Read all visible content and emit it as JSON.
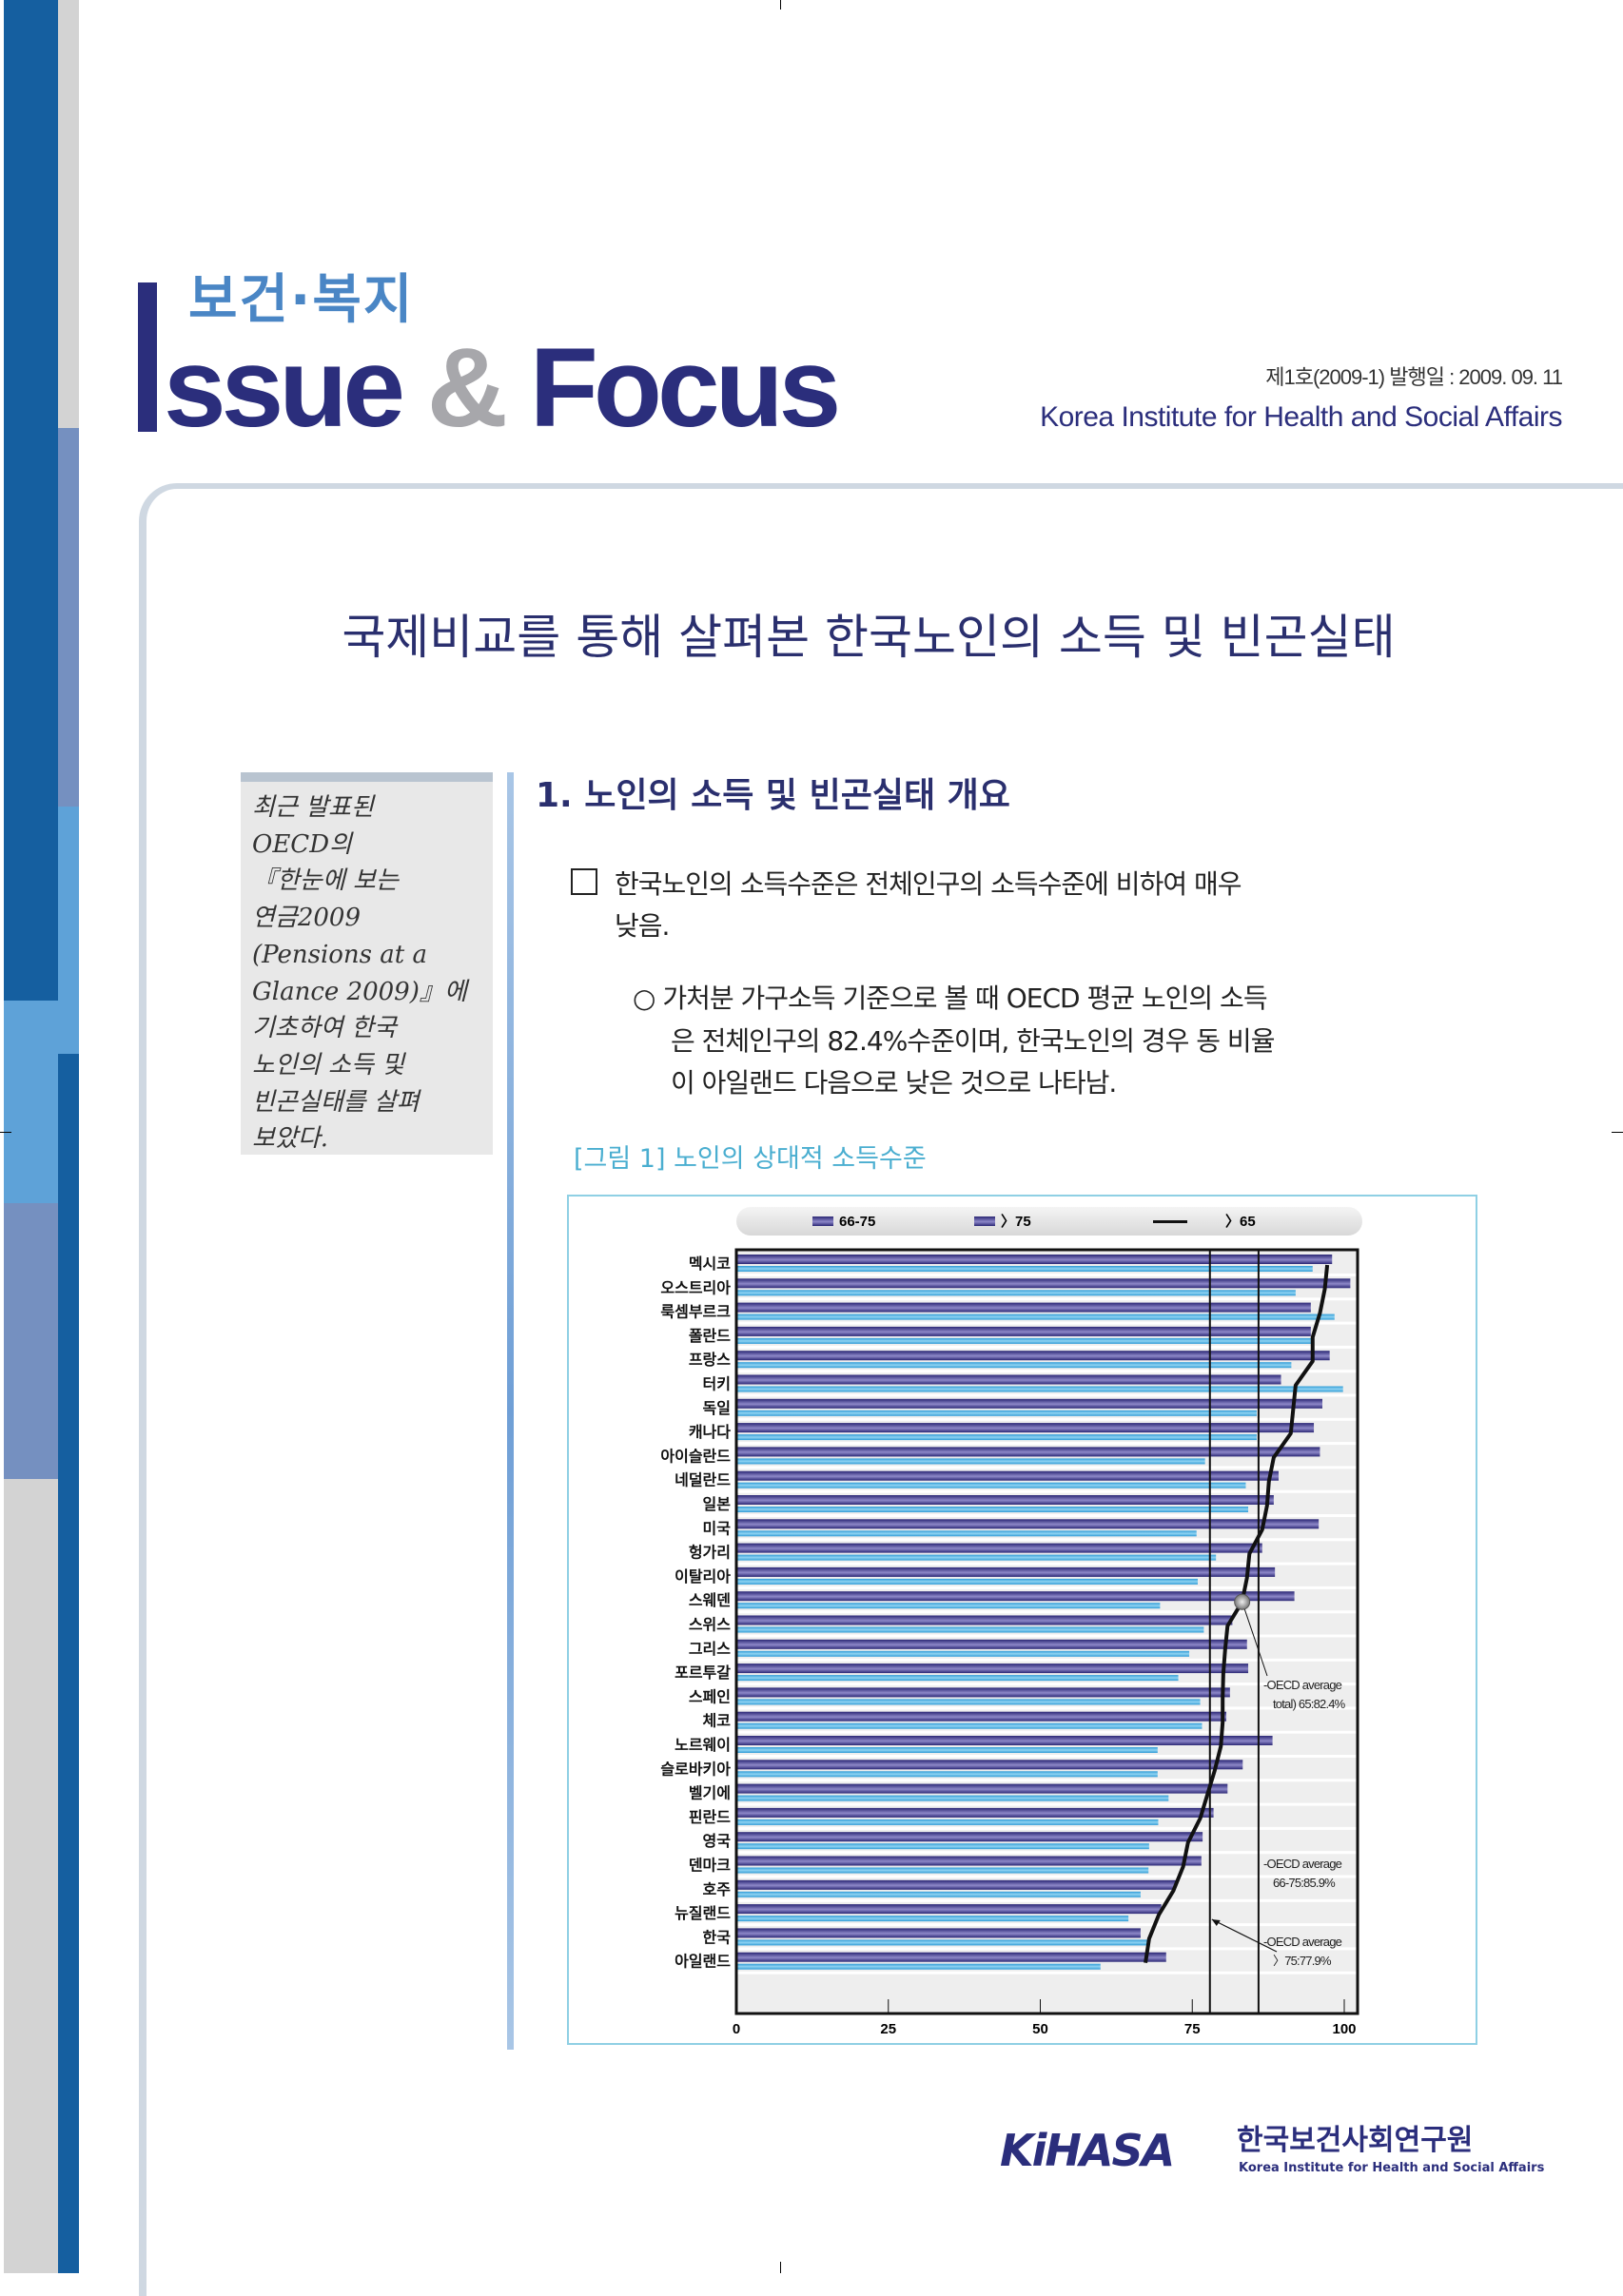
{
  "header": {
    "logo_subtitle": "보건·복지",
    "logo_main_1": "ssue",
    "logo_amp": "&",
    "logo_main_2": "Focus",
    "issue_info": "제1호(2009-1) 발행일 : 2009. 09. 11",
    "org_name": "Korea Institute for Health and Social Affairs"
  },
  "doc_title": "국제비교를 통해 살펴본 한국노인의 소득 및 빈곤실태",
  "sidebar": {
    "lines": [
      "최근 발표된",
      "OECD의",
      "『한눈에 보는",
      "연금2009",
      "(Pensions at a",
      "Glance 2009)』에",
      "기초하여 한국",
      "노인의 소득 및",
      "빈곤실태를 살펴",
      "보았다."
    ]
  },
  "section": {
    "heading": "1. 노인의 소득 및 빈곤실태 개요",
    "para1": [
      "한국노인의 소득수준은 전체인구의 소득수준에 비하여 매우",
      "낮음."
    ],
    "para2": [
      "○ 가처분 가구소득 기준으로 볼 때 OECD 평균 노인의 소득",
      "은 전체인구의 82.4%수준이며, 한국노인의 경우 동 비율",
      "이 아일랜드 다음으로 낮은 것으로 나타남."
    ],
    "figure_caption": "[그림 1] 노인의 상대적 소득수준"
  },
  "chart_data": {
    "type": "bar",
    "orientation": "horizontal",
    "categories": [
      "멕시코",
      "오스트리아",
      "룩셈부르크",
      "폴란드",
      "프랑스",
      "터키",
      "독일",
      "캐나다",
      "아이슬란드",
      "네덜란드",
      "일본",
      "미국",
      "헝가리",
      "이탈리아",
      "스웨덴",
      "스위스",
      "그리스",
      "포르투갈",
      "스페인",
      "체코",
      "노르웨이",
      "슬로바키아",
      "벨기에",
      "핀란드",
      "영국",
      "덴마크",
      "호주",
      "뉴질랜드",
      "한국",
      "아일랜드"
    ],
    "series": [
      {
        "name": "66-75",
        "kind": "bar",
        "color": "#2e2a7a",
        "values": [
          98.0,
          101.0,
          94.5,
          94.5,
          97.6,
          89.6,
          96.4,
          95.0,
          96.0,
          89.2,
          88.4,
          95.8,
          86.5,
          88.6,
          91.8,
          81.6,
          84.0,
          84.2,
          81.2,
          80.6,
          88.2,
          83.3,
          80.8,
          78.5,
          76.7,
          76.5,
          72.3,
          69.9,
          66.5,
          70.7
        ]
      },
      {
        "name": "〉75",
        "kind": "bar",
        "color": "#3aa6dc",
        "values": [
          94.8,
          92.0,
          98.4,
          94.5,
          91.3,
          99.8,
          85.6,
          85.6,
          77.1,
          83.8,
          84.2,
          75.7,
          78.9,
          75.9,
          69.7,
          76.9,
          74.5,
          72.7,
          76.3,
          76.6,
          69.3,
          69.3,
          71.1,
          69.4,
          67.9,
          67.8,
          66.5,
          64.5,
          67.7,
          59.9
        ]
      },
      {
        "name": "〉65",
        "kind": "line",
        "color": "#111111",
        "values": [
          97.2,
          96.8,
          96.0,
          94.8,
          94.8,
          92.0,
          91.6,
          91.2,
          88.4,
          87.6,
          87.3,
          86.5,
          84.4,
          84.0,
          83.2,
          80.8,
          80.4,
          80.1,
          80.0,
          80.0,
          79.7,
          78.7,
          77.5,
          76.3,
          74.3,
          73.5,
          71.9,
          69.5,
          67.9,
          67.3
        ]
      }
    ],
    "xlim": [
      0,
      100
    ],
    "xticks": [
      "0",
      "25",
      "50",
      "75",
      "100"
    ],
    "reference_lines": [
      77.9,
      85.9
    ],
    "highlight_point": {
      "category": "스웨덴",
      "series": "〉65"
    },
    "annotations": [
      {
        "line1": "-OECD average",
        "line2": "total) 65:82.4%"
      },
      {
        "line1": "-OECD average",
        "line2": "66-75:85.9%"
      },
      {
        "line1": "-OECD average",
        "line2": "〉75:77.9%"
      }
    ],
    "legend_position": "top",
    "grid": false
  },
  "footer": {
    "logo_text": "KiHASA",
    "org_kr": "한국보건사회연구원",
    "org_en": "Korea Institute for Health and Social Affairs"
  }
}
